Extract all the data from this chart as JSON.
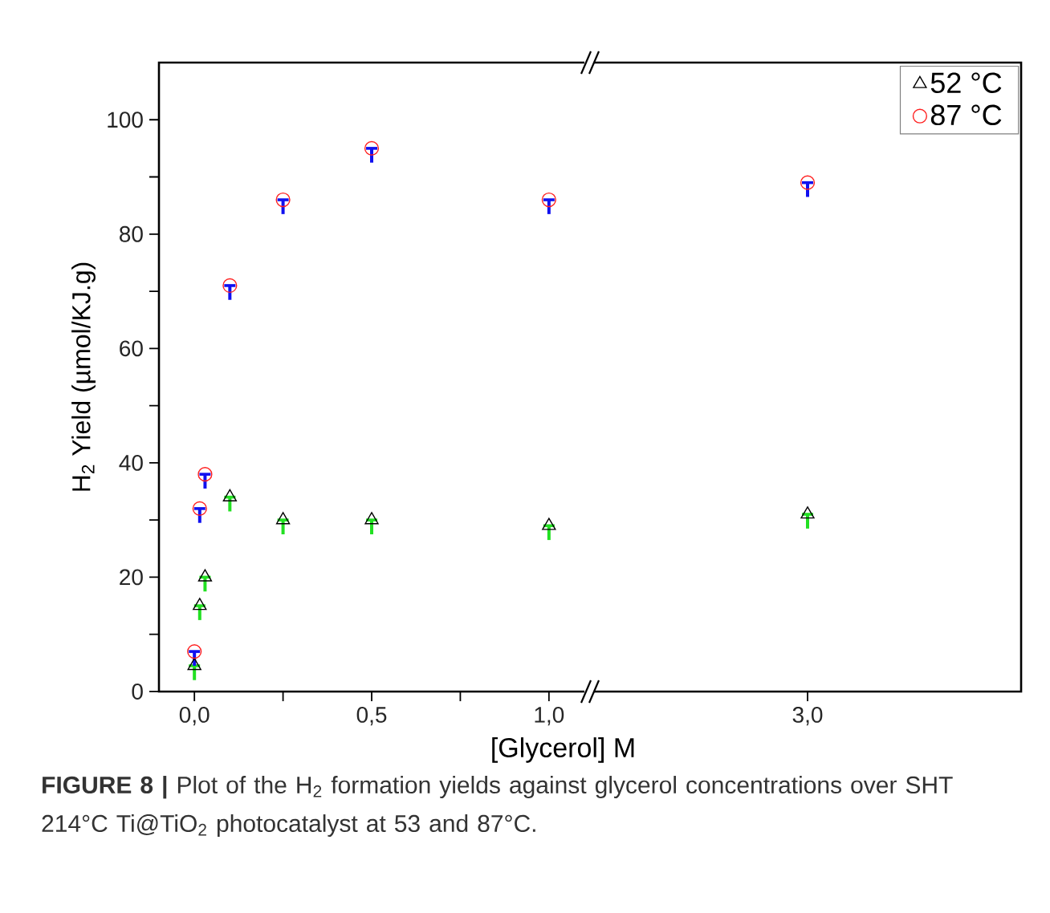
{
  "chart_data": [
    {
      "type": "scatter",
      "xlabel": "[Glycerol] M",
      "ylabel": "H$_{2}$ Yield (µmol/KJ.g)",
      "annotations": [
        "**FIGURE 8 |** Plot of the H$_{2}$ formation yields against glycerol concentrations over SHT 214°C Ti@TiO$_{2}$ photocatalyst at 53 and 87°C."
      ],
      "xlim": [
        -0.1,
        1.1
      ],
      "ylim": [
        0,
        110
      ],
      "xticks": [
        {
          "value": 0,
          "label": "0,0"
        },
        {
          "value": 0.25,
          "label": null
        },
        {
          "value": 0.5,
          "label": "0,5"
        },
        {
          "value": 0.75,
          "label": null
        },
        {
          "value": 1,
          "label": "1,0"
        }
      ],
      "yticks": [
        0,
        {
          "value": 10,
          "label": null
        },
        20,
        {
          "value": 30,
          "label": null
        },
        40,
        {
          "value": 50,
          "label": null
        },
        60,
        {
          "value": 70,
          "label": null
        },
        80,
        {
          "value": 90,
          "label": null
        },
        100
      ],
      "series": [
        {
          "color": "#000000",
          "marker": "triangle",
          "x": [
            0,
            0.015,
            0.03,
            0.1,
            0.25,
            0.5,
            1
          ],
          "values": [
            4.5,
            15,
            20,
            34,
            30,
            30,
            29
          ],
          "errors": [
            [
              2,
              4.5
            ],
            [
              12.5,
              15
            ],
            [
              17.5,
              20
            ],
            [
              31.5,
              34
            ],
            [
              27.5,
              30
            ],
            [
              27.5,
              30
            ],
            [
              26.5,
              29
            ]
          ]
        },
        {
          "color": "#ff2020",
          "marker": "circle",
          "x": [
            0,
            0.015,
            0.03,
            0.1,
            0.25,
            0.5,
            1
          ],
          "values": [
            7,
            32,
            38,
            71,
            86,
            95,
            86
          ],
          "errors": [
            [
              4.5,
              7
            ],
            [
              29.5,
              32
            ],
            [
              35.5,
              38
            ],
            [
              68.5,
              71
            ],
            [
              83.5,
              86
            ],
            [
              92.5,
              95
            ],
            [
              83.5,
              86
            ]
          ]
        }
      ]
    },
    {
      "type": "scatter",
      "categories": [
        "3,0"
      ],
      "ylim": [
        0,
        110
      ],
      "tick_labels": "x",
      "legend": "top right",
      "series": [
        {
          "name": "52 °C",
          "color": "#000000",
          "marker": "triangle",
          "values": [
            31
          ],
          "errors": [
            [
              28.5,
              31
            ]
          ]
        },
        {
          "name": "87 °C",
          "color": "#ff2020",
          "marker": "circle",
          "values": [
            89
          ],
          "errors": [
            [
              86.5,
              89
            ]
          ]
        }
      ]
    }
  ]
}
